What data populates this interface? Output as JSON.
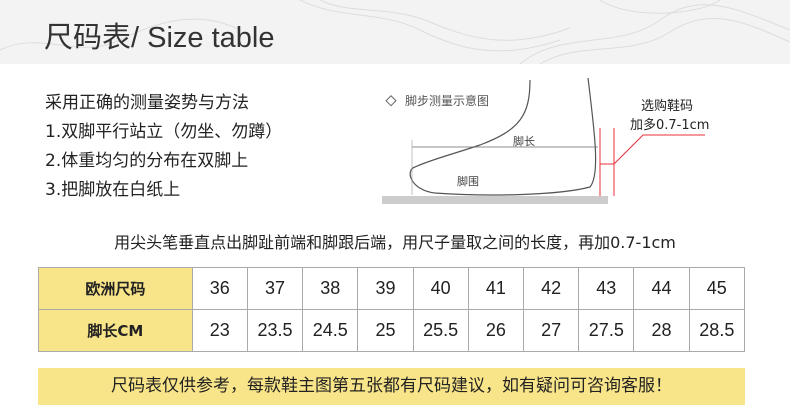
{
  "title": "尺码表/  Size table",
  "instructions": [
    "采用正确的测量姿势与方法",
    "1.双脚平行站立（勿坐、勿蹲）",
    "2.体重均匀的分布在双脚上",
    "3.把脚放在白纸上"
  ],
  "diagram": {
    "caption": "脚步测量示意图",
    "length_label": "脚长",
    "girth_label": "脚围",
    "advice_line1": "选购鞋码",
    "advice_line2": "加多0.7-1cm",
    "accent": "#e8323c"
  },
  "note": "用尖头笔垂直点出脚趾前端和脚跟后端，用尺子量取之间的长度，再加0.7-1cm",
  "table": {
    "row_headers": [
      "欧洲尺码",
      "脚长CM"
    ],
    "eu_sizes": [
      "36",
      "37",
      "38",
      "39",
      "40",
      "41",
      "42",
      "43",
      "44",
      "45"
    ],
    "foot_length_cm": [
      "23",
      "23.5",
      "24.5",
      "25",
      "25.5",
      "26",
      "27",
      "27.5",
      "28",
      "28.5"
    ],
    "header_color": "#f9e589"
  },
  "tip": "尺码表仅供参考，每款鞋主图第五张都有尺码建议，如有疑问可咨询客服！"
}
